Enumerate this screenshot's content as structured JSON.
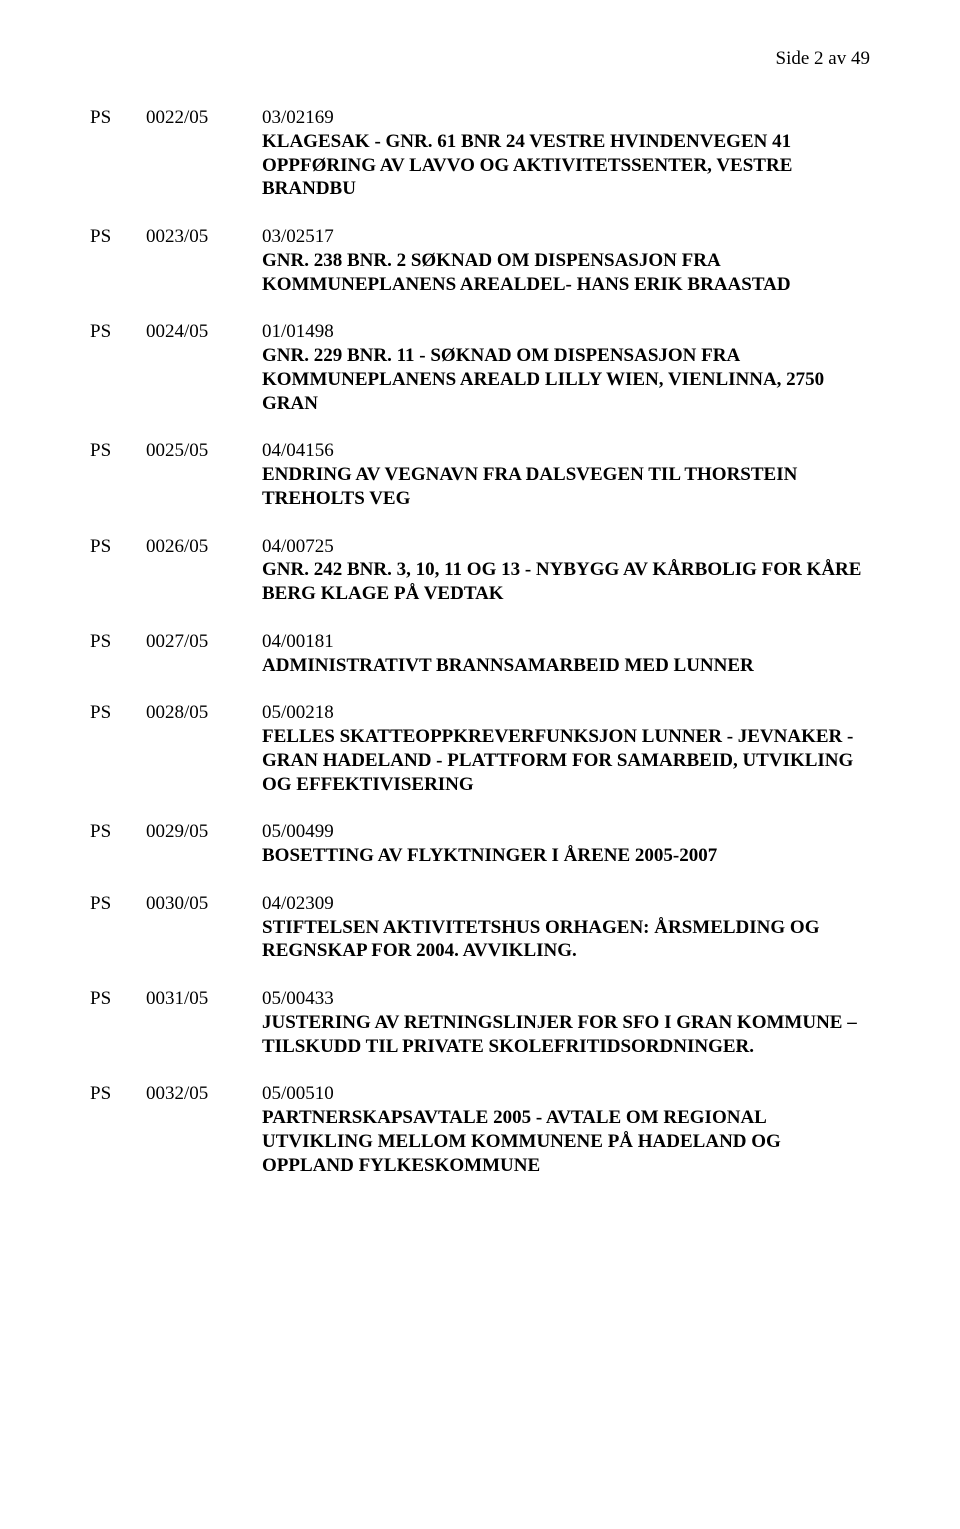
{
  "page_header": "Side 2 av 49",
  "entries": [
    {
      "ps": "PS",
      "num": "0022/05",
      "ref": "03/02169",
      "title": "KLAGESAK - GNR. 61 BNR 24 VESTRE HVINDENVEGEN 41 OPPFØRING AV LAVVO OG AKTIVITETSSENTER, VESTRE BRANDBU"
    },
    {
      "ps": "PS",
      "num": "0023/05",
      "ref": "03/02517",
      "title": "GNR. 238 BNR. 2 SØKNAD OM DISPENSASJON FRA KOMMUNEPLANENS AREALDEL- HANS ERIK BRAASTAD"
    },
    {
      "ps": "PS",
      "num": "0024/05",
      "ref": "01/01498",
      "title": "GNR. 229 BNR. 11 - SØKNAD OM DISPENSASJON FRA KOMMUNEPLANENS AREALD LILLY WIEN, VIENLINNA, 2750 GRAN"
    },
    {
      "ps": "PS",
      "num": "0025/05",
      "ref": "04/04156",
      "title": "ENDRING AV VEGNAVN FRA DALSVEGEN TIL THORSTEIN TREHOLTS VEG"
    },
    {
      "ps": "PS",
      "num": "0026/05",
      "ref": "04/00725",
      "title": "GNR. 242 BNR. 3, 10, 11 OG 13 - NYBYGG AV KÅRBOLIG FOR KÅRE BERG KLAGE PÅ VEDTAK"
    },
    {
      "ps": "PS",
      "num": "0027/05",
      "ref": "04/00181",
      "title": "ADMINISTRATIVT BRANNSAMARBEID MED LUNNER"
    },
    {
      "ps": "PS",
      "num": "0028/05",
      "ref": "05/00218",
      "title": "FELLES SKATTEOPPKREVERFUNKSJON LUNNER - JEVNAKER - GRAN HADELAND - PLATTFORM FOR SAMARBEID, UTVIKLING OG EFFEKTIVISERING"
    },
    {
      "ps": "PS",
      "num": "0029/05",
      "ref": "05/00499",
      "title": "BOSETTING AV FLYKTNINGER I ÅRENE 2005-2007"
    },
    {
      "ps": "PS",
      "num": "0030/05",
      "ref": "04/02309",
      "title": "STIFTELSEN AKTIVITETSHUS ORHAGEN: ÅRSMELDING OG REGNSKAP FOR 2004. AVVIKLING."
    },
    {
      "ps": "PS",
      "num": "0031/05",
      "ref": "05/00433",
      "title": "JUSTERING AV RETNINGSLINJER FOR SFO I GRAN KOMMUNE – TILSKUDD TIL PRIVATE SKOLEFRITIDSORDNINGER."
    },
    {
      "ps": "PS",
      "num": "0032/05",
      "ref": "05/00510",
      "title": "PARTNERSKAPSAVTALE 2005 - AVTALE OM REGIONAL UTVIKLING MELLOM  KOMMUNENE PÅ HADELAND OG OPPLAND FYLKESKOMMUNE"
    }
  ]
}
